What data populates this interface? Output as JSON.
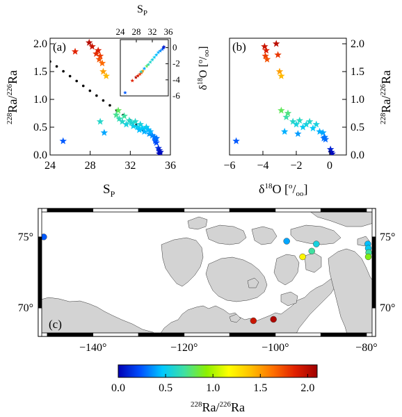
{
  "chart_data": [
    {
      "panel": "(a)",
      "type": "scatter",
      "xlabel": "S_P",
      "ylabel": "228Ra/226Ra",
      "xlim": [
        24,
        36
      ],
      "ylim": [
        0,
        2.1
      ],
      "xticks": [
        "24",
        "28",
        "32",
        "36"
      ],
      "yticks": [
        "0.0",
        "0.5",
        "1.0",
        "1.5",
        "2.0"
      ],
      "points": [
        {
          "x": 26.5,
          "y": 1.86,
          "r": 1.86
        },
        {
          "x": 27.9,
          "y": 2.02,
          "r": 2.02
        },
        {
          "x": 28.2,
          "y": 1.95,
          "r": 1.95
        },
        {
          "x": 28.6,
          "y": 1.82,
          "r": 1.82
        },
        {
          "x": 28.8,
          "y": 1.88,
          "r": 1.88
        },
        {
          "x": 28.9,
          "y": 1.72,
          "r": 1.72
        },
        {
          "x": 29.0,
          "y": 1.78,
          "r": 1.78
        },
        {
          "x": 29.2,
          "y": 1.65,
          "r": 1.65
        },
        {
          "x": 29.3,
          "y": 1.5,
          "r": 1.5
        },
        {
          "x": 29.6,
          "y": 1.42,
          "r": 1.42
        },
        {
          "x": 29.0,
          "y": 0.6,
          "r": 0.6
        },
        {
          "x": 29.4,
          "y": 0.4,
          "r": 0.4
        },
        {
          "x": 25.3,
          "y": 0.25,
          "r": 0.25
        },
        {
          "x": 30.8,
          "y": 0.8,
          "r": 0.8
        },
        {
          "x": 30.6,
          "y": 0.72,
          "r": 0.72
        },
        {
          "x": 30.9,
          "y": 0.65,
          "r": 0.65
        },
        {
          "x": 31.2,
          "y": 0.6,
          "r": 0.6
        },
        {
          "x": 31.4,
          "y": 0.7,
          "r": 0.7
        },
        {
          "x": 31.6,
          "y": 0.55,
          "r": 0.55
        },
        {
          "x": 31.9,
          "y": 0.62,
          "r": 0.62
        },
        {
          "x": 32.1,
          "y": 0.58,
          "r": 0.58
        },
        {
          "x": 32.3,
          "y": 0.52,
          "r": 0.52
        },
        {
          "x": 32.5,
          "y": 0.6,
          "r": 0.6
        },
        {
          "x": 32.7,
          "y": 0.5,
          "r": 0.5
        },
        {
          "x": 32.9,
          "y": 0.45,
          "r": 0.45
        },
        {
          "x": 33.0,
          "y": 0.55,
          "r": 0.55
        },
        {
          "x": 33.2,
          "y": 0.48,
          "r": 0.48
        },
        {
          "x": 33.4,
          "y": 0.42,
          "r": 0.42
        },
        {
          "x": 33.6,
          "y": 0.5,
          "r": 0.5
        },
        {
          "x": 33.8,
          "y": 0.45,
          "r": 0.45
        },
        {
          "x": 33.9,
          "y": 0.38,
          "r": 0.38
        },
        {
          "x": 34.0,
          "y": 0.42,
          "r": 0.42
        },
        {
          "x": 34.2,
          "y": 0.35,
          "r": 0.35
        },
        {
          "x": 34.4,
          "y": 0.32,
          "r": 0.32
        },
        {
          "x": 34.5,
          "y": 0.28,
          "r": 0.28
        },
        {
          "x": 34.5,
          "y": 0.25,
          "r": 0.25
        },
        {
          "x": 34.6,
          "y": 0.3,
          "r": 0.3
        },
        {
          "x": 34.6,
          "y": 0.22,
          "r": 0.22
        },
        {
          "x": 34.8,
          "y": 0.12,
          "r": 0.12
        },
        {
          "x": 34.9,
          "y": 0.08,
          "r": 0.08
        },
        {
          "x": 35.0,
          "y": 0.05,
          "r": 0.05
        },
        {
          "x": 34.9,
          "y": 0.02,
          "r": 0.02
        }
      ],
      "mixing_line": {
        "x": [
          24,
          34.6
        ],
        "y": [
          1.68,
          0.28
        ]
      },
      "inset": {
        "type": "scatter",
        "xlabel": "S_P",
        "ylabel": "δ18O [‰]",
        "xlim": [
          24,
          36
        ],
        "ylim": [
          -6,
          1
        ],
        "xticks": [
          "24",
          "28",
          "32",
          "36"
        ],
        "yticks": [
          "0",
          "-2",
          "-4",
          "-6"
        ],
        "points": [
          {
            "x": 25.2,
            "y": -5.6,
            "r": 0.25
          },
          {
            "x": 27.0,
            "y": -4.1,
            "r": 1.86
          },
          {
            "x": 27.9,
            "y": -3.7,
            "r": 2.02
          },
          {
            "x": 28.4,
            "y": -3.5,
            "r": 1.9
          },
          {
            "x": 28.9,
            "y": -3.3,
            "r": 1.8
          },
          {
            "x": 29.3,
            "y": -3.1,
            "r": 1.7
          },
          {
            "x": 29.6,
            "y": -2.9,
            "r": 1.5
          },
          {
            "x": 29.2,
            "y": -3.0,
            "r": 0.6
          },
          {
            "x": 30.0,
            "y": -2.6,
            "r": 0.4
          },
          {
            "x": 30.6,
            "y": -2.3,
            "r": 0.8
          },
          {
            "x": 31.0,
            "y": -2.1,
            "r": 0.65
          },
          {
            "x": 31.5,
            "y": -1.8,
            "r": 0.6
          },
          {
            "x": 32.0,
            "y": -1.5,
            "r": 0.55
          },
          {
            "x": 32.5,
            "y": -1.2,
            "r": 0.5
          },
          {
            "x": 33.0,
            "y": -0.9,
            "r": 0.45
          },
          {
            "x": 33.5,
            "y": -0.6,
            "r": 0.42
          },
          {
            "x": 34.0,
            "y": -0.4,
            "r": 0.35
          },
          {
            "x": 34.5,
            "y": -0.2,
            "r": 0.28
          },
          {
            "x": 34.9,
            "y": 0.1,
            "r": 0.05
          },
          {
            "x": 34.8,
            "y": 0.0,
            "r": 0.1
          }
        ]
      }
    },
    {
      "panel": "(b)",
      "type": "scatter",
      "xlabel": "δ18O [‰]",
      "ylabel": "228Ra/226Ra",
      "xlim": [
        -6,
        1
      ],
      "ylim": [
        0,
        2.1
      ],
      "xticks": [
        "-6",
        "-4",
        "-2",
        "0"
      ],
      "yticks": [
        "0.0",
        "0.5",
        "1.0",
        "1.5",
        "2.0"
      ],
      "points": [
        {
          "x": -3.9,
          "y": 1.95,
          "r": 1.95
        },
        {
          "x": -3.8,
          "y": 1.88,
          "r": 1.88
        },
        {
          "x": -3.85,
          "y": 1.78,
          "r": 1.78
        },
        {
          "x": -3.75,
          "y": 1.72,
          "r": 1.72
        },
        {
          "x": -3.2,
          "y": 2.0,
          "r": 2.0
        },
        {
          "x": -3.1,
          "y": 1.8,
          "r": 1.8
        },
        {
          "x": -3.0,
          "y": 1.5,
          "r": 1.5
        },
        {
          "x": -2.9,
          "y": 1.42,
          "r": 1.42
        },
        {
          "x": -2.9,
          "y": 0.8,
          "r": 0.8
        },
        {
          "x": -2.6,
          "y": 0.68,
          "r": 0.68
        },
        {
          "x": -2.5,
          "y": 0.75,
          "r": 0.75
        },
        {
          "x": -2.2,
          "y": 0.6,
          "r": 0.6
        },
        {
          "x": -2.0,
          "y": 0.55,
          "r": 0.55
        },
        {
          "x": -1.8,
          "y": 0.62,
          "r": 0.62
        },
        {
          "x": -1.6,
          "y": 0.5,
          "r": 0.5
        },
        {
          "x": -1.4,
          "y": 0.55,
          "r": 0.55
        },
        {
          "x": -1.2,
          "y": 0.6,
          "r": 0.6
        },
        {
          "x": -1.0,
          "y": 0.48,
          "r": 0.48
        },
        {
          "x": -0.8,
          "y": 0.55,
          "r": 0.55
        },
        {
          "x": -0.6,
          "y": 0.42,
          "r": 0.42
        },
        {
          "x": -0.4,
          "y": 0.4,
          "r": 0.4
        },
        {
          "x": -0.3,
          "y": 0.32,
          "r": 0.32
        },
        {
          "x": -0.25,
          "y": 0.28,
          "r": 0.28
        },
        {
          "x": -0.35,
          "y": 0.3,
          "r": 0.3
        },
        {
          "x": -2.7,
          "y": 0.42,
          "r": 0.42
        },
        {
          "x": -1.9,
          "y": 0.38,
          "r": 0.38
        },
        {
          "x": -5.6,
          "y": 0.25,
          "r": 0.25
        },
        {
          "x": 0.05,
          "y": 0.1,
          "r": 0.1
        },
        {
          "x": 0.1,
          "y": 0.05,
          "r": 0.05
        },
        {
          "x": 0.15,
          "y": 0.02,
          "r": 0.02
        }
      ]
    },
    {
      "panel": "(c)",
      "type": "map",
      "lon_range": [
        -152,
        -78
      ],
      "lat_range": [
        68,
        77
      ],
      "xticks": [
        "-140°",
        "-120°",
        "-100°",
        "-80°"
      ],
      "yticks_left": [
        "75°",
        "70°"
      ],
      "yticks_right": [
        "75°",
        "70°"
      ],
      "stations": [
        {
          "lon": -150.8,
          "lat": 75.0,
          "r": 0.25
        },
        {
          "lon": -97.5,
          "lat": 74.7,
          "r": 0.4
        },
        {
          "lon": -91.0,
          "lat": 74.5,
          "r": 0.55
        },
        {
          "lon": -92.0,
          "lat": 74.0,
          "r": 0.7
        },
        {
          "lon": -94.0,
          "lat": 73.6,
          "r": 1.2
        },
        {
          "lon": -79.7,
          "lat": 74.5,
          "r": 0.45
        },
        {
          "lon": -79.6,
          "lat": 74.2,
          "r": 0.5
        },
        {
          "lon": -79.5,
          "lat": 73.9,
          "r": 0.7
        },
        {
          "lon": -79.6,
          "lat": 73.6,
          "r": 0.9
        },
        {
          "lon": -104.8,
          "lat": 69.1,
          "r": 1.95
        },
        {
          "lon": -100.4,
          "lat": 69.2,
          "r": 2.05
        }
      ]
    }
  ],
  "panel_labels": {
    "a": "(a)",
    "b": "(b)",
    "c": "(c)"
  },
  "axis_text": {
    "sp_label": "S",
    "sp_sub": "P",
    "ratio_pre": "228",
    "ratio_mid": "Ra/",
    "ratio_sup2": "226",
    "ratio_end": "Ra",
    "d18o_delta": "δ",
    "d18o_sup": "18",
    "d18o_main": "O [",
    "d18o_permil_sup": "o",
    "d18o_slash": "/",
    "d18o_permil_sub": "oo",
    "d18o_close": "]"
  },
  "colorbar": {
    "ticks": [
      "0.0",
      "0.5",
      "1.0",
      "1.5",
      "2.0"
    ],
    "range": [
      0,
      2.1
    ],
    "colors": [
      "#0000b4",
      "#0050ff",
      "#00c8ff",
      "#40e0a0",
      "#8cf000",
      "#ffff00",
      "#ffc000",
      "#ff7000",
      "#e02000",
      "#a00000"
    ]
  },
  "marker_colors_note": "jet colormap",
  "land_color": "#d3d3d3"
}
